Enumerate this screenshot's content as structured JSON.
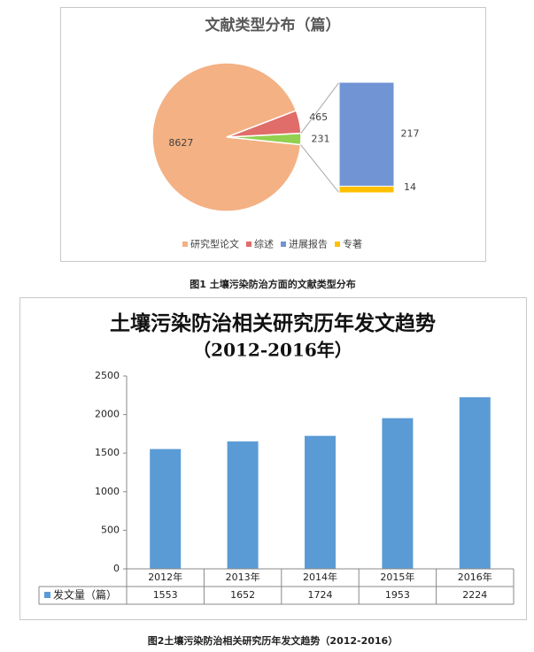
{
  "chart_data": [
    {
      "type": "pie-of-bar",
      "title": "文献类型分布（篇）",
      "slices": [
        {
          "name": "研究型论文",
          "color": "#F4B183",
          "value": 8627
        },
        {
          "name": "综述",
          "color": "#E06D6A",
          "value": 465
        }
      ],
      "other": {
        "color": "#92D050",
        "value": 231
      },
      "bar": [
        {
          "name": "进展报告",
          "color": "#7094D4",
          "value": 217
        },
        {
          "name": "专著",
          "color": "#FFC000",
          "value": 14
        }
      ],
      "caption": "图1  土壤污染防治方面的文献类型分布"
    },
    {
      "type": "bar",
      "title": "土壤污染防治相关研究历年发文趋势",
      "subtitle": "（2012-2016年）",
      "categories": [
        "2012年",
        "2013年",
        "2014年",
        "2015年",
        "2016年"
      ],
      "series": [
        {
          "name": "发文量（篇）",
          "color": "#5B9BD5",
          "values": [
            1553,
            1652,
            1724,
            1953,
            2224
          ]
        }
      ],
      "ylim": [
        0,
        2500
      ],
      "yticks": [
        0,
        500,
        1000,
        1500,
        2000,
        2500
      ],
      "grid": false,
      "data_table": true,
      "caption": "图2土壤污染防治相关研究历年发文趋势（2012-2016）"
    }
  ]
}
